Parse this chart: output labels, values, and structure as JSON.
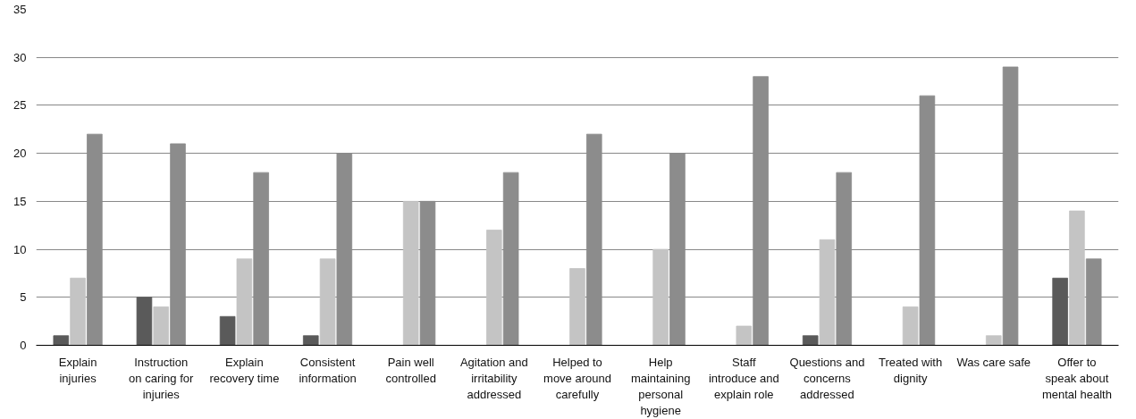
{
  "chart_data": {
    "type": "bar",
    "categories": [
      "Explain injuries",
      "Instruction on caring for injuries",
      "Explain recovery time",
      "Consistent information",
      "Pain well controlled",
      "Agitation and irritability addressed",
      "Helped to move around carefully",
      "Help maintaining personal hygiene",
      "Staff introduce and explain role",
      "Questions and concerns addressed",
      "Treated with dignity",
      "Was care safe",
      "Offer to speak about mental health"
    ],
    "series": [
      {
        "color": "#5a5a5a",
        "values": [
          1,
          5,
          3,
          1,
          0,
          0,
          0,
          0,
          0,
          1,
          0,
          0,
          7
        ]
      },
      {
        "color": "#c4c4c4",
        "values": [
          7,
          4,
          9,
          9,
          15,
          12,
          8,
          10,
          2,
          11,
          4,
          1,
          14
        ]
      },
      {
        "color": "#8c8c8c",
        "values": [
          22,
          21,
          18,
          20,
          15,
          18,
          22,
          20,
          28,
          18,
          26,
          29,
          9
        ]
      }
    ],
    "ylim": [
      0,
      35
    ],
    "yticks": [
      0,
      5,
      10,
      15,
      20,
      25,
      30,
      35
    ],
    "grid": "y"
  }
}
